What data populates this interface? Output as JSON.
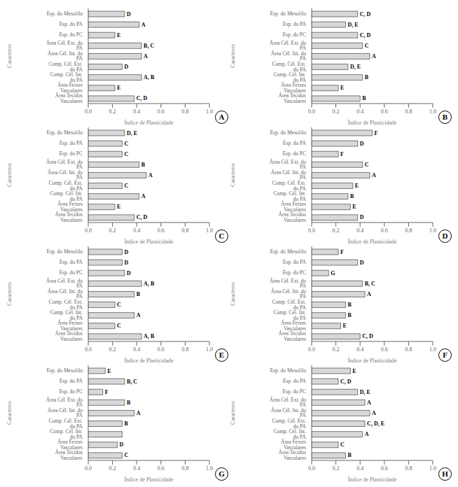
{
  "chart_data": [
    {
      "type": "bar",
      "orientation": "horizontal",
      "title": "A",
      "categories": [
        "Esp. do Mesofilo",
        "Esp. do PA",
        "Esp. do PC",
        "Área Cél. Ext. do PA",
        "Área Cél. Int. do PA",
        "Comp. Cél. Ext. do PA",
        "Comp. Cél. Int. do PA",
        "Área Feixes Vasculares",
        "Área Tecidos Vasculares"
      ],
      "values": [
        0.3,
        0.42,
        0.22,
        0.44,
        0.44,
        0.28,
        0.44,
        0.22,
        0.38
      ],
      "annotations": [
        "D",
        "A",
        "E",
        "B, C",
        "A",
        "D",
        "A, B",
        "E",
        "C, D"
      ],
      "color": "#d8d8d8",
      "xlabel": "Índice de Plasticidade",
      "ylabel": "Caracteres",
      "xlim": [
        0.0,
        1.0
      ],
      "xticks": [
        {
          "value": 0.0,
          "label": "0.0"
        },
        0.2,
        0.4,
        0.6,
        0.8,
        {
          "value": 1.0,
          "label": "1.0"
        }
      ]
    },
    {
      "type": "bar",
      "orientation": "horizontal",
      "title": "B",
      "categories": [
        "Esp. do Mesofilo",
        "Esp. do PA",
        "Esp. do PC",
        "Área Cél. Ext. do PA",
        "Área Cél. Int. do PA",
        "Comp. Cél. Ext. do PA",
        "Comp. Cél. Int. do PA",
        "Área Feixes Vasculares",
        "Área Tecidos Vasculares"
      ],
      "values": [
        0.38,
        0.28,
        0.38,
        0.42,
        0.48,
        0.3,
        0.42,
        0.22,
        0.4
      ],
      "annotations": [
        "C, D",
        "D, E",
        "C, D",
        "C",
        "A",
        "D, E",
        "B",
        "E",
        "B"
      ],
      "color": "#d8d8d8",
      "xlabel": "Índice de Plasticidade",
      "ylabel": "Caracteres",
      "xlim": [
        0.0,
        1.0
      ],
      "xticks": [
        {
          "value": 0.0,
          "label": "0.0"
        },
        0.2,
        0.4,
        0.6,
        0.8,
        {
          "value": 1.0,
          "label": "1.0"
        }
      ]
    },
    {
      "type": "bar",
      "orientation": "horizontal",
      "title": "C",
      "categories": [
        "Esp. do Mesofilo",
        "Esp. do PA",
        "Esp. do PC",
        "Área Cél. Ext. do PA",
        "Área Cél. Int. do PA",
        "Comp. Cél. Ext. do PA",
        "Comp. Cél. Int. do PA",
        "Área Feixes Vasculares",
        "Área Tecidos Vasculares"
      ],
      "values": [
        0.3,
        0.28,
        0.28,
        0.42,
        0.48,
        0.28,
        0.42,
        0.22,
        0.38
      ],
      "annotations": [
        "D, E",
        "C",
        "C",
        "B",
        "A",
        "C",
        "A",
        "E",
        "C, D"
      ],
      "color": "#d8d8d8",
      "xlabel": "Índice de Plasticidade",
      "ylabel": "Caracteres",
      "xlim": [
        0.0,
        1.0
      ],
      "xticks": [
        {
          "value": 0.0,
          "label": "0.0"
        },
        0.2,
        0.4,
        0.6,
        0.8,
        {
          "value": 1.0,
          "label": "1.0"
        }
      ]
    },
    {
      "type": "bar",
      "orientation": "horizontal",
      "title": "D",
      "categories": [
        "Esp. do Mesofilo",
        "Esp. do PA",
        "Esp. do PC",
        "Área Cél. Ext. do PA",
        "Área Cél. Int. do PA",
        "Comp. Cél. Ext. do PA",
        "Comp. Cél. Int. do PA",
        "Área Feixes Vasculares",
        "Área Tecidos Vasculares"
      ],
      "values": [
        0.5,
        0.38,
        0.22,
        0.42,
        0.48,
        0.34,
        0.3,
        0.32,
        0.38
      ],
      "annotations": [
        "F",
        "D",
        "F",
        "C",
        "A",
        "E",
        "B",
        "E",
        "D"
      ],
      "color": "#d8d8d8",
      "xlabel": "Índice de Plasticidade",
      "ylabel": "Caracteres",
      "xlim": [
        0.0,
        1.0
      ],
      "xticks": [
        {
          "value": 0.0,
          "label": "0.0"
        },
        0.2,
        0.4,
        0.6,
        0.8,
        {
          "value": 1.0,
          "label": "1.0"
        }
      ]
    },
    {
      "type": "bar",
      "orientation": "horizontal",
      "title": "E",
      "categories": [
        "Esp. do Mesofilo",
        "Esp. do PA",
        "Esp. do PC",
        "Área Cél. Ext. do PA",
        "Área Cél. Int. do PA",
        "Comp. Cél. Ext. do PA",
        "Comp. Cél. Int. do PA",
        "Área Feixes Vasculares",
        "Área Tecidos Vasculares"
      ],
      "values": [
        0.28,
        0.28,
        0.3,
        0.44,
        0.38,
        0.22,
        0.38,
        0.22,
        0.44
      ],
      "annotations": [
        "D",
        "D",
        "D",
        "A, B",
        "B",
        "C",
        "A",
        "C",
        "A, B"
      ],
      "color": "#d8d8d8",
      "xlabel": "Índice de Plasticidade",
      "ylabel": "Caracteres",
      "xlim": [
        0.0,
        1.0
      ],
      "xticks": [
        {
          "value": 0.0,
          "label": "0.0"
        },
        0.2,
        0.4,
        0.6,
        0.8,
        {
          "value": 1.0,
          "label": "1.0"
        }
      ]
    },
    {
      "type": "bar",
      "orientation": "horizontal",
      "title": "F",
      "categories": [
        "Esp. do Mesofilo",
        "Esp. do PA",
        "Esp. do PC",
        "Área Cél. Ext. do PA",
        "Área Cél. Int. do PA",
        "Comp. Cél. Ext. do PA",
        "Comp. Cél. Int. do PA",
        "Área Feixes Vasculares",
        "Área Tecidos Vasculares"
      ],
      "values": [
        0.22,
        0.38,
        0.14,
        0.42,
        0.44,
        0.28,
        0.28,
        0.24,
        0.4
      ],
      "annotations": [
        "F",
        "D",
        "G",
        "B, C",
        "A",
        "B",
        "B",
        "E",
        "C, D"
      ],
      "color": "#d8d8d8",
      "xlabel": "Índice de Plasticidade",
      "ylabel": "Caracteres",
      "xlim": [
        0.0,
        1.0
      ],
      "xticks": [
        {
          "value": 0.0,
          "label": "0.0"
        },
        0.2,
        0.4,
        0.6,
        0.8,
        {
          "value": 1.0,
          "label": "1.0"
        }
      ]
    },
    {
      "type": "bar",
      "orientation": "horizontal",
      "title": "G",
      "categories": [
        "Esp. do Mesofilo",
        "Esp. do PA",
        "Esp. do PC",
        "Área Cél. Ext. do PA",
        "Área Cél. Int. do PA",
        "Comp. Cél. Ext. do PA",
        "Comp. Cél. Int. do PA",
        "Área Feixes Vasculares",
        "Área Tecidos Vasculares"
      ],
      "values": [
        0.14,
        0.3,
        0.12,
        0.3,
        0.38,
        0.28,
        0.28,
        0.24,
        0.28
      ],
      "annotations": [
        "E",
        "B, C",
        "F",
        "B",
        "A",
        "B",
        null,
        "D",
        "C"
      ],
      "color": "#d8d8d8",
      "xlabel": "Índice de Plasticidade",
      "ylabel": "Caracteres",
      "xlim": [
        0.0,
        1.0
      ],
      "xticks": [
        {
          "value": 0.0,
          "label": "0.0"
        },
        0.2,
        0.4,
        0.6,
        0.8,
        {
          "value": 1.0,
          "label": "1.0"
        }
      ]
    },
    {
      "type": "bar",
      "orientation": "horizontal",
      "title": "H",
      "categories": [
        "Esp. do Mesofilo",
        "Esp. do PA",
        "Esp. do PC",
        "Área Cél. Ext. do PA",
        "Área Cél. Int. do PA",
        "Comp. Cél. Ext. do PA",
        "Comp. Cél. Int. do PA",
        "Área Feixes Vasculares",
        "Área Tecidos Vasculares"
      ],
      "values": [
        0.32,
        0.22,
        0.38,
        0.44,
        0.48,
        0.44,
        0.42,
        0.22,
        0.28
      ],
      "annotations": [
        "E",
        "C, D",
        "D, E",
        "A",
        "A",
        "C, D, E",
        "A",
        "C",
        "B"
      ],
      "color": "#d8d8d8",
      "xlabel": "Índice de Plasticidade",
      "ylabel": "Caracteres",
      "xlim": [
        0.0,
        1.0
      ],
      "xticks": [
        {
          "value": 0.0,
          "label": "0.0"
        },
        0.2,
        0.4,
        0.6,
        0.8,
        {
          "value": 1.0,
          "label": "1.0"
        }
      ]
    }
  ]
}
